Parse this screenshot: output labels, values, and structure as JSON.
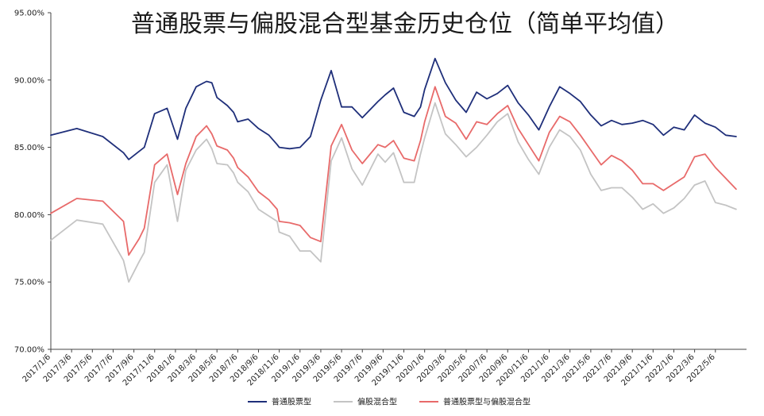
{
  "chart_data": {
    "type": "line",
    "title": "普通股票与偏股混合型基金历史仓位（简单平均值）",
    "xlabel": "",
    "ylabel": "",
    "ylim": [
      70,
      95
    ],
    "yticks": [
      70,
      75,
      80,
      85,
      90,
      95
    ],
    "ytick_labels": [
      "70.00%",
      "75.00%",
      "80.00%",
      "85.00%",
      "90.00%",
      "95.00%"
    ],
    "grid": false,
    "legend_position": "bottom",
    "x_tick_labels": [
      "2017/1/6",
      "2017/3/6",
      "2017/5/6",
      "2017/7/6",
      "2017/9/6",
      "2017/11/6",
      "2018/1/6",
      "2018/3/6",
      "2018/5/6",
      "2018/7/6",
      "2018/9/6",
      "2018/11/6",
      "2019/1/6",
      "2019/3/6",
      "2019/5/6",
      "2019/7/6",
      "2019/9/6",
      "2019/11/6",
      "2020/1/6",
      "2020/3/6",
      "2020/5/6",
      "2020/7/6",
      "2020/9/6",
      "2020/11/6",
      "2021/1/6",
      "2021/3/6",
      "2021/5/6",
      "2021/7/6",
      "2021/9/6",
      "2021/11/6",
      "2022/1/6",
      "2022/3/6",
      "2022/5/6"
    ],
    "x_anchor_months": [
      0,
      2.5,
      5,
      7,
      7.5,
      8.5,
      9,
      10,
      11.2,
      12.2,
      13,
      14,
      15,
      15.5,
      16,
      17,
      17.6,
      18,
      19,
      20,
      21,
      21.8,
      22,
      23,
      24,
      25,
      26,
      27,
      28,
      29,
      30,
      31.5,
      32.2,
      33,
      34,
      35,
      35.6,
      36,
      37,
      38,
      39,
      40,
      41,
      42,
      43,
      44,
      45,
      46,
      47,
      48,
      49,
      50,
      51,
      52,
      53,
      54,
      55,
      56,
      57,
      58,
      59,
      60,
      61,
      62,
      63,
      64,
      65,
      66,
      67
    ],
    "x_anchor_dates": [
      "2017/1/6",
      "2017/3/21",
      "2017/6/6",
      "2017/8/6",
      "2017/8/21",
      "2017/9/21",
      "2017/10/6",
      "2017/11/6",
      "2017/12/12",
      "2018/1/12",
      "2018/2/6",
      "2018/3/6",
      "2018/4/6",
      "2018/4/21",
      "2018/5/6",
      "2018/6/6",
      "2018/6/24",
      "2018/7/6",
      "2018/8/6",
      "2018/9/6",
      "2018/10/6",
      "2018/10/30",
      "2018/11/6",
      "2018/12/6",
      "2019/1/6",
      "2019/2/6",
      "2019/3/6",
      "2019/4/6",
      "2019/5/6",
      "2019/6/6",
      "2019/7/6",
      "2019/8/21",
      "2019/9/12",
      "2019/10/6",
      "2019/11/6",
      "2019/12/6",
      "2019/12/24",
      "2020/1/6",
      "2020/2/6",
      "2020/3/6",
      "2020/4/6",
      "2020/5/6",
      "2020/6/6",
      "2020/7/6",
      "2020/8/6",
      "2020/9/6",
      "2020/10/6",
      "2020/11/6",
      "2020/12/6",
      "2021/1/6",
      "2021/2/6",
      "2021/3/6",
      "2021/4/6",
      "2021/5/6",
      "2021/6/6",
      "2021/7/6",
      "2021/8/6",
      "2021/9/6",
      "2021/10/6",
      "2021/11/6",
      "2021/12/6",
      "2022/1/6",
      "2022/2/6",
      "2022/3/6",
      "2022/4/6",
      "2022/5/6",
      "2022/6/6",
      "2022/7/6"
    ],
    "series": [
      {
        "name": "普通股票型",
        "color": "#1f2f7a",
        "values": [
          85.9,
          86.4,
          85.8,
          84.6,
          84.1,
          84.7,
          85.0,
          87.5,
          87.9,
          85.6,
          87.9,
          89.5,
          89.9,
          89.8,
          88.7,
          88.1,
          87.6,
          86.9,
          87.1,
          86.4,
          85.9,
          85.2,
          85.0,
          84.9,
          85.0,
          85.8,
          88.5,
          90.7,
          88.0,
          88.0,
          87.2,
          88.4,
          88.9,
          89.4,
          87.6,
          87.3,
          88.0,
          89.3,
          91.6,
          89.8,
          88.5,
          87.6,
          89.1,
          88.6,
          89.0,
          89.6,
          88.3,
          87.4,
          86.3,
          88.0,
          89.5,
          89.0,
          88.4,
          87.4,
          86.6,
          87.0,
          86.7,
          86.8,
          87.0,
          86.7,
          85.9,
          86.5,
          86.3,
          87.4,
          86.8,
          86.5,
          85.9,
          85.8
        ]
      },
      {
        "name": "偏股混合型",
        "color": "#c4c4c4",
        "values": [
          78.1,
          79.6,
          79.3,
          76.6,
          75.0,
          76.5,
          77.2,
          82.4,
          83.7,
          79.5,
          83.3,
          84.8,
          85.6,
          84.9,
          83.8,
          83.7,
          83.1,
          82.4,
          81.7,
          80.4,
          79.9,
          79.5,
          78.7,
          78.4,
          77.3,
          77.3,
          76.5,
          84.0,
          85.7,
          83.4,
          82.2,
          84.5,
          83.9,
          84.6,
          82.4,
          82.4,
          84.5,
          85.7,
          88.3,
          86.0,
          85.2,
          84.3,
          85.0,
          85.9,
          86.9,
          87.5,
          85.4,
          84.1,
          83.0,
          85.0,
          86.3,
          85.8,
          84.8,
          83.0,
          81.8,
          82.0,
          82.0,
          81.3,
          80.4,
          80.8,
          80.1,
          80.5,
          81.2,
          82.2,
          82.5,
          80.9,
          80.7,
          80.4
        ]
      },
      {
        "name": "普通股票型与偏股混合型",
        "color": "#e86a6a",
        "values": [
          80.1,
          81.2,
          81.0,
          79.5,
          77.0,
          78.2,
          79.0,
          83.7,
          84.5,
          81.5,
          83.8,
          85.8,
          86.6,
          86.0,
          85.1,
          84.8,
          84.2,
          83.5,
          82.8,
          81.7,
          81.1,
          80.4,
          79.5,
          79.4,
          79.2,
          78.3,
          78.0,
          85.1,
          86.7,
          84.8,
          83.8,
          85.2,
          85.0,
          85.5,
          84.2,
          84.0,
          85.5,
          86.9,
          89.5,
          87.3,
          86.8,
          85.6,
          86.9,
          86.7,
          87.5,
          88.1,
          86.4,
          85.2,
          84.0,
          86.1,
          87.3,
          86.9,
          85.9,
          84.8,
          83.7,
          84.4,
          84.0,
          83.3,
          82.3,
          82.3,
          81.8,
          82.3,
          82.8,
          84.3,
          84.5,
          83.5,
          82.7,
          81.9
        ]
      }
    ]
  }
}
